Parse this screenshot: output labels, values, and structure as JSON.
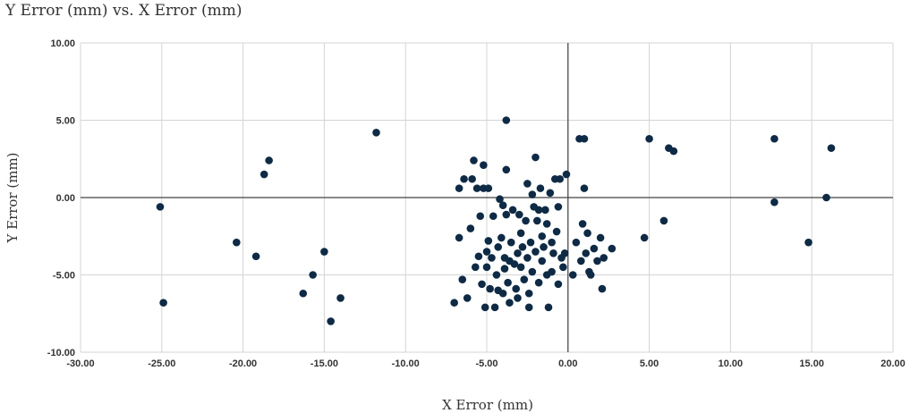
{
  "chart_data": {
    "type": "scatter",
    "title": "Y Error (mm) vs. X Error (mm)",
    "xlabel": "X Error (mm)",
    "ylabel": "Y Error (mm)",
    "xlim": [
      -30,
      20
    ],
    "ylim": [
      -10,
      10
    ],
    "x_ticks": [
      "-30.00",
      "-25.00",
      "-20.00",
      "-15.00",
      "-10.00",
      "-5.00",
      "0.00",
      "5.00",
      "10.00",
      "15.00",
      "20.00"
    ],
    "y_ticks": [
      "10.00",
      "5.00",
      "0.00",
      "-5.00",
      "-10.00"
    ],
    "grid": true,
    "legend": "none",
    "marker_color": "#0e2a45",
    "points": [
      [
        -25.1,
        -0.6
      ],
      [
        -24.9,
        -6.8
      ],
      [
        -20.4,
        -2.9
      ],
      [
        -19.2,
        -3.8
      ],
      [
        -18.7,
        1.5
      ],
      [
        -18.4,
        2.4
      ],
      [
        -16.3,
        -6.2
      ],
      [
        -15.7,
        -5.0
      ],
      [
        -15.0,
        -3.5
      ],
      [
        -14.6,
        -8.0
      ],
      [
        -14.0,
        -6.5
      ],
      [
        -11.8,
        4.2
      ],
      [
        -7.0,
        -6.8
      ],
      [
        -6.7,
        -2.6
      ],
      [
        -6.7,
        0.6
      ],
      [
        -6.5,
        -5.3
      ],
      [
        -6.4,
        1.2
      ],
      [
        -6.2,
        -6.5
      ],
      [
        -6.0,
        -2.0
      ],
      [
        -5.9,
        1.2
      ],
      [
        -5.8,
        2.4
      ],
      [
        -5.7,
        -4.5
      ],
      [
        -5.6,
        0.6
      ],
      [
        -5.5,
        -3.8
      ],
      [
        -5.4,
        -1.2
      ],
      [
        -5.3,
        -5.6
      ],
      [
        -5.2,
        2.1
      ],
      [
        -5.2,
        0.6
      ],
      [
        -5.1,
        -7.1
      ],
      [
        -5.0,
        -3.5
      ],
      [
        -5.0,
        -4.5
      ],
      [
        -4.9,
        -2.8
      ],
      [
        -4.9,
        0.6
      ],
      [
        -4.8,
        -5.9
      ],
      [
        -4.7,
        -3.9
      ],
      [
        -4.6,
        -1.2
      ],
      [
        -4.5,
        -7.1
      ],
      [
        -4.4,
        -5.0
      ],
      [
        -4.3,
        -3.2
      ],
      [
        -4.3,
        -6.0
      ],
      [
        -4.2,
        -0.1
      ],
      [
        -4.1,
        -2.6
      ],
      [
        -4.0,
        -0.5
      ],
      [
        -4.0,
        -6.2
      ],
      [
        -3.9,
        -4.6
      ],
      [
        -3.9,
        -3.9
      ],
      [
        -3.8,
        -1.1
      ],
      [
        -3.8,
        5.0
      ],
      [
        -3.8,
        1.8
      ],
      [
        -3.7,
        -5.5
      ],
      [
        -3.6,
        -4.1
      ],
      [
        -3.6,
        -6.8
      ],
      [
        -3.5,
        -2.9
      ],
      [
        -3.4,
        -0.8
      ],
      [
        -3.3,
        -4.3
      ],
      [
        -3.2,
        -5.9
      ],
      [
        -3.1,
        -3.6
      ],
      [
        -3.1,
        -6.5
      ],
      [
        -3.0,
        -1.1
      ],
      [
        -2.9,
        -2.3
      ],
      [
        -2.9,
        -4.5
      ],
      [
        -2.8,
        -3.2
      ],
      [
        -2.7,
        -5.3
      ],
      [
        -2.6,
        -1.5
      ],
      [
        -2.5,
        0.9
      ],
      [
        -2.5,
        -3.9
      ],
      [
        -2.4,
        -6.2
      ],
      [
        -2.4,
        -7.1
      ],
      [
        -2.3,
        -2.9
      ],
      [
        -2.2,
        0.2
      ],
      [
        -2.2,
        -4.8
      ],
      [
        -2.1,
        -0.6
      ],
      [
        -2.0,
        2.6
      ],
      [
        -2.0,
        -3.5
      ],
      [
        -1.9,
        -1.5
      ],
      [
        -1.8,
        -5.5
      ],
      [
        -1.8,
        -0.8
      ],
      [
        -1.7,
        0.6
      ],
      [
        -1.6,
        -2.5
      ],
      [
        -1.6,
        -4.1
      ],
      [
        -1.5,
        -3.2
      ],
      [
        -1.4,
        -0.8
      ],
      [
        -1.3,
        -5.0
      ],
      [
        -1.3,
        -1.7
      ],
      [
        -1.2,
        -7.1
      ],
      [
        -1.1,
        0.3
      ],
      [
        -1.0,
        -2.9
      ],
      [
        -1.0,
        -4.8
      ],
      [
        -0.9,
        -3.6
      ],
      [
        -0.8,
        1.2
      ],
      [
        -0.7,
        -2.2
      ],
      [
        -0.6,
        -0.6
      ],
      [
        -0.6,
        -5.6
      ],
      [
        -0.5,
        1.2
      ],
      [
        -0.4,
        -3.9
      ],
      [
        -0.3,
        -4.5
      ],
      [
        -0.2,
        -3.6
      ],
      [
        -0.1,
        1.5
      ],
      [
        0.3,
        -5.0
      ],
      [
        0.5,
        -2.9
      ],
      [
        0.7,
        3.8
      ],
      [
        0.8,
        -4.1
      ],
      [
        0.9,
        -1.7
      ],
      [
        1.0,
        0.6
      ],
      [
        1.0,
        3.8
      ],
      [
        1.1,
        -3.6
      ],
      [
        1.2,
        -2.3
      ],
      [
        1.3,
        -4.8
      ],
      [
        1.4,
        -5.0
      ],
      [
        1.6,
        -3.3
      ],
      [
        1.8,
        -4.1
      ],
      [
        2.0,
        -2.6
      ],
      [
        2.1,
        -5.9
      ],
      [
        2.2,
        -3.9
      ],
      [
        2.7,
        -3.3
      ],
      [
        4.7,
        -2.6
      ],
      [
        5.0,
        3.8
      ],
      [
        5.9,
        -1.5
      ],
      [
        6.2,
        3.2
      ],
      [
        6.5,
        3.0
      ],
      [
        12.7,
        3.8
      ],
      [
        12.7,
        -0.3
      ],
      [
        14.8,
        -2.9
      ],
      [
        15.9,
        0.0
      ],
      [
        16.2,
        3.2
      ]
    ]
  }
}
